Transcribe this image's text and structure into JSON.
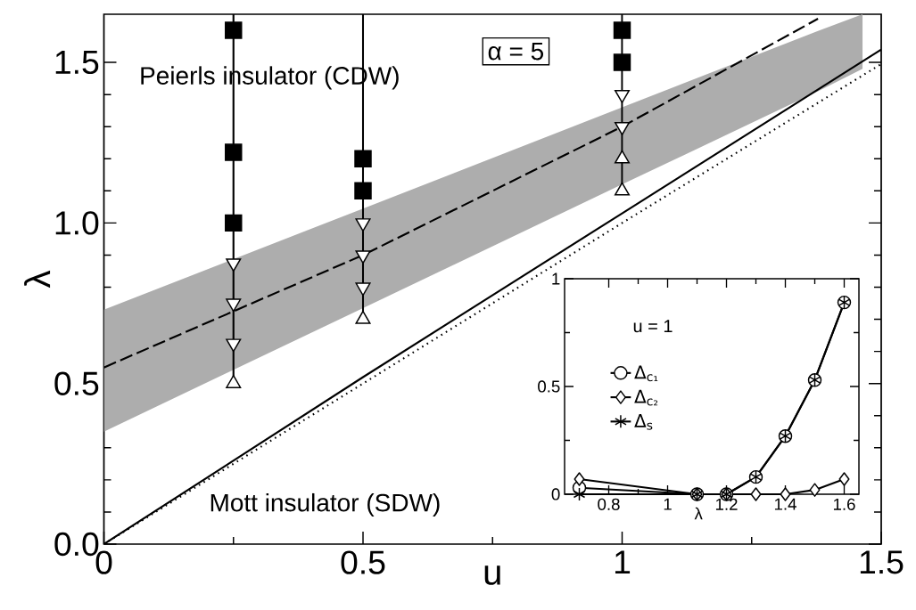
{
  "chart_data": [
    {
      "type": "line",
      "xlabel": "u",
      "ylabel": "λ",
      "xlim": [
        0,
        1.5
      ],
      "ylim": [
        0,
        1.65
      ],
      "xticks": [
        0,
        0.5,
        1,
        1.5
      ],
      "yticks": [
        {
          "value": 0,
          "label": "0.0"
        },
        0.5,
        {
          "value": 1,
          "label": "1.0"
        },
        1.5
      ],
      "annotations": [
        "Peierls insulator (CDW)",
        "α = 5",
        "Mott insulator (SDW)"
      ],
      "series": [
        {
          "type": "line",
          "color": "#000000",
          "line_style": "dashed",
          "x": [
            0,
            0.5,
            1,
            1.378,
            1.464
          ],
          "values": [
            0.55,
            0.9,
            1.3,
            1.636,
            null
          ],
          "lower": [
            0.35,
            0.735,
            1.12,
            1.41,
            1.48
          ],
          "upper": [
            0.73,
            1.045,
            1.36,
            1.598,
            1.65
          ]
        },
        {
          "type": "line",
          "color": "#000000",
          "line_style": "solid",
          "x": [
            0,
            0.5,
            1,
            1.5
          ],
          "values": [
            0,
            0.52,
            1.03,
            1.54
          ]
        },
        {
          "type": "line",
          "color": "#000000",
          "line_style": "dotted",
          "x": [
            0,
            0.5,
            1,
            1.5
          ],
          "values": [
            0,
            0.5,
            1.0,
            1.495
          ]
        },
        {
          "type": "line",
          "color": "#000000",
          "line_style": "solid",
          "x": [
            0.25,
            0.25
          ],
          "values": [
            0.5,
            1.65
          ]
        },
        {
          "type": "line",
          "color": "#000000",
          "line_style": "solid",
          "x": [
            0.5,
            0.5
          ],
          "values": [
            0.7,
            1.65
          ]
        },
        {
          "type": "line",
          "color": "#000000",
          "line_style": "solid",
          "x": [
            1,
            1
          ],
          "values": [
            1.65,
            1.1
          ]
        },
        {
          "type": "scatter",
          "color": "#000000",
          "marker": "square",
          "x": [
            0.25,
            0.25,
            0.25,
            0.5,
            0.5,
            1,
            1
          ],
          "values": [
            1.6,
            1.22,
            1.0,
            1.2,
            1.1,
            1.6,
            1.5
          ]
        },
        {
          "type": "scatter",
          "color": "#ffffff",
          "marker": "triangle-down",
          "x": [
            0.25,
            0.25,
            0.25,
            0.5,
            0.5,
            0.5,
            1,
            1
          ],
          "values": [
            0.875,
            0.75,
            0.625,
            1.0,
            0.9,
            0.8,
            1.4,
            1.3
          ]
        },
        {
          "type": "scatter",
          "color": "#ffffff",
          "marker": "triangle",
          "x": [
            0.25,
            0.5,
            1,
            1
          ],
          "values": [
            0.5,
            0.7,
            1.2,
            1.1
          ]
        }
      ]
    },
    {
      "type": "line",
      "xlabel": "λ",
      "xlim": [
        0.65,
        1.65
      ],
      "ylim": [
        0,
        1
      ],
      "xticks": [
        0.8,
        1,
        1.2,
        1.4,
        1.6
      ],
      "yticks": [
        0,
        0.5,
        1
      ],
      "annotations": [
        "u = 1"
      ],
      "legend": "left",
      "series": [
        {
          "name": "Δ$_{c₁}$",
          "color": "#000000",
          "marker": "circle",
          "x": [
            0.7,
            1.1,
            1.2,
            1.3,
            1.4,
            1.5,
            1.6
          ],
          "values": [
            0.03,
            0,
            0,
            0.08,
            0.27,
            0.53,
            0.89
          ]
        },
        {
          "name": "Δ$_{c₂}$",
          "color": "#000000",
          "marker": "diamond",
          "x": [
            0.7,
            1.1,
            1.2,
            1.3,
            1.4,
            1.5,
            1.6
          ],
          "values": [
            0.07,
            0,
            0,
            0,
            0,
            0.02,
            0.07
          ]
        },
        {
          "name": "Δ$_{s}$",
          "color": "#000000",
          "marker": "cross",
          "x": [
            0.7,
            1.1,
            1.2,
            1.3,
            1.4,
            1.5,
            1.6
          ],
          "values": [
            0,
            0,
            0,
            0.08,
            0.27,
            0.53,
            0.89
          ]
        }
      ]
    }
  ]
}
